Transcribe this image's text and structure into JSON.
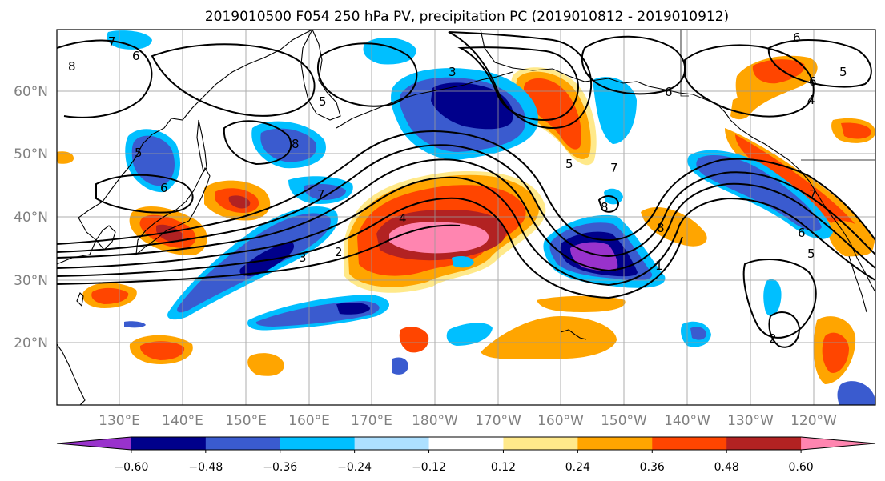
{
  "title": "2019010500 F054 250 hPa PV, precipitation PC (2019010812 - 2019010912)",
  "map": {
    "lat_labels": [
      "60°N",
      "50°N",
      "40°N",
      "30°N",
      "20°N"
    ],
    "lon_labels": [
      "130°E",
      "140°E",
      "150°E",
      "160°E",
      "170°E",
      "180°W",
      "170°W",
      "160°W",
      "150°W",
      "140°W",
      "130°W",
      "120°W"
    ],
    "contour_labels": [
      "7",
      "6",
      "8",
      "5",
      "6",
      "5",
      "8",
      "7",
      "4",
      "3",
      "2",
      "3",
      "5",
      "6",
      "8",
      "7",
      "6",
      "5",
      "4",
      "8",
      "1",
      "2",
      "7",
      "6",
      "5",
      "6"
    ]
  },
  "colorbar": {
    "tick_labels": [
      "−0.60",
      "−0.48",
      "−0.36",
      "−0.24",
      "−0.12",
      "0.12",
      "0.24",
      "0.36",
      "0.48",
      "0.60"
    ],
    "colors": [
      "#9932CC",
      "#00008B",
      "#3A5BCF",
      "#00BFFF",
      "#ADE0FF",
      "#FFFFFF",
      "#FFE98A",
      "#FFA500",
      "#FF4500",
      "#B22222",
      "#FF85B0"
    ]
  },
  "chart_data": {
    "type": "heatmap",
    "variable": "precipitation PC",
    "contour_variable": "250 hPa PV",
    "levels": [
      -0.6,
      -0.48,
      -0.36,
      -0.24,
      -0.12,
      0.12,
      0.24,
      0.36,
      0.48,
      0.6
    ],
    "lon_ticks": [
      130,
      140,
      150,
      160,
      170,
      180,
      -170,
      -160,
      -150,
      -140,
      -130,
      -120
    ],
    "lat_ticks": [
      60,
      50,
      40,
      30,
      20
    ]
  }
}
